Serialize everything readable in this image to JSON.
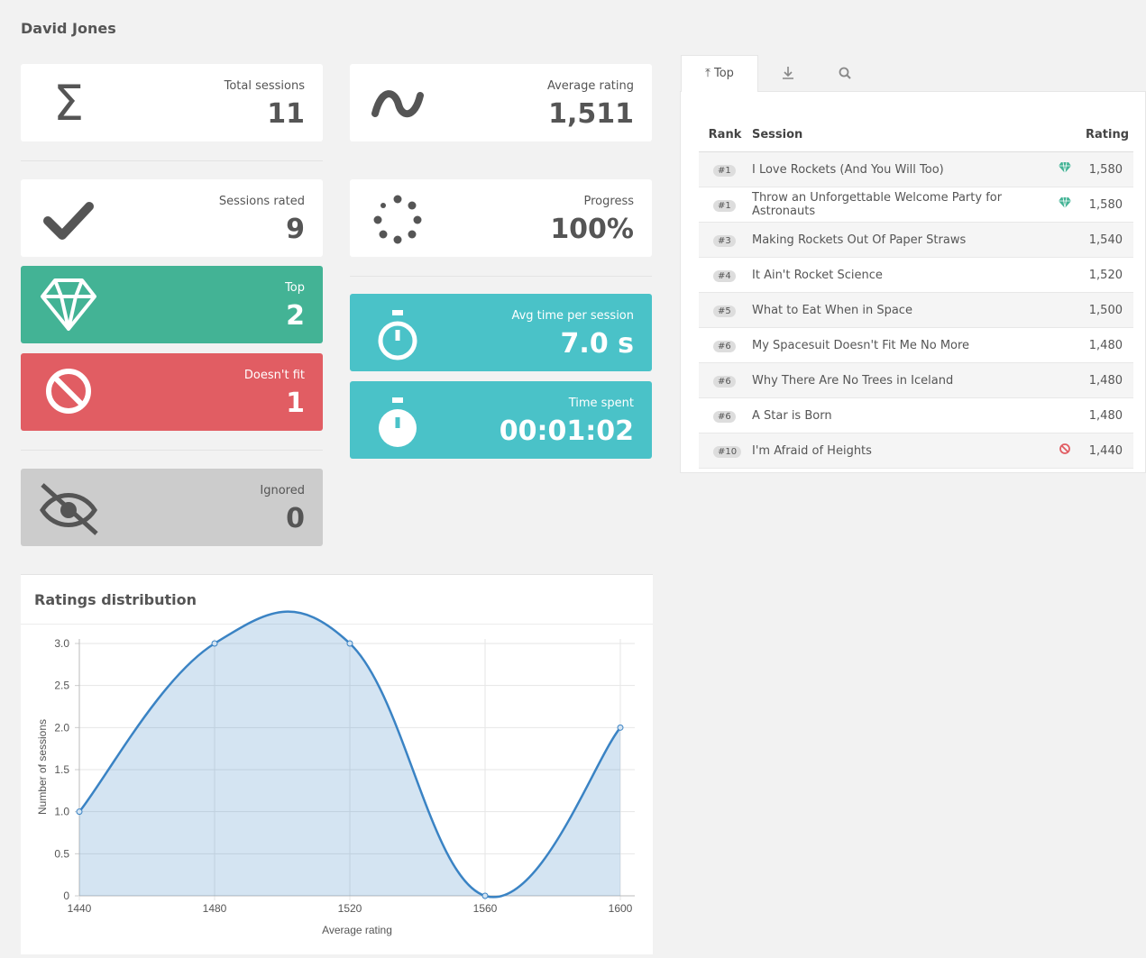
{
  "header": {
    "title": "David Jones"
  },
  "stats": [
    {
      "label": "Total sessions",
      "value": "11"
    },
    {
      "label": "Average rating",
      "value": "1,511"
    },
    {
      "label": "Sessions rated",
      "value": "9"
    },
    {
      "label": "Progress",
      "value": "100%"
    },
    {
      "label": "Top",
      "value": "2"
    },
    {
      "label": "Avg time per session",
      "value": "7.0 s"
    },
    {
      "label": "Doesn't fit",
      "value": "1"
    },
    {
      "label": "Time spent",
      "value": "00:01:02"
    },
    {
      "label": "Ignored",
      "value": "0"
    }
  ],
  "tabs": {
    "active": "Top"
  },
  "table": {
    "columns": [
      "Rank",
      "Session",
      "Rating"
    ],
    "rows": [
      {
        "rank": "#1",
        "session": "I Love Rockets (And You Will Too)",
        "rating": "1,580",
        "badge": "top"
      },
      {
        "rank": "#1",
        "session": "Throw an Unforgettable Welcome Party for Astronauts",
        "rating": "1,580",
        "badge": "top"
      },
      {
        "rank": "#3",
        "session": "Making Rockets Out Of Paper Straws",
        "rating": "1,540"
      },
      {
        "rank": "#4",
        "session": "It Ain't Rocket Science",
        "rating": "1,520"
      },
      {
        "rank": "#5",
        "session": "What to Eat When in Space",
        "rating": "1,500"
      },
      {
        "rank": "#6",
        "session": "My Spacesuit Doesn't Fit Me No More",
        "rating": "1,480"
      },
      {
        "rank": "#6",
        "session": "Why There Are No Trees in Iceland",
        "rating": "1,480"
      },
      {
        "rank": "#6",
        "session": "A Star is Born",
        "rating": "1,480"
      },
      {
        "rank": "#10",
        "session": "I'm Afraid of Heights",
        "rating": "1,440",
        "badge": "doesnt-fit"
      }
    ]
  },
  "chart_data": {
    "type": "line",
    "title": "Ratings distribution",
    "x": [
      1440,
      1480,
      1520,
      1560,
      1600
    ],
    "series": [
      {
        "name": "Number of sessions",
        "color": "#3a83c4",
        "values": [
          1,
          3,
          3,
          0,
          2
        ]
      }
    ],
    "xlabel": "Average rating",
    "ylabel": "Number of sessions",
    "xlim": [
      1440,
      1600
    ],
    "xticks": [
      1440,
      1480,
      1520,
      1560,
      1600
    ],
    "ylim": [
      0,
      3
    ],
    "yticks": [
      0,
      0.5,
      {
        "value": 1,
        "label": "1.0"
      },
      1.5,
      {
        "value": 2,
        "label": "2.0"
      },
      2.5,
      {
        "value": 3,
        "label": "3.0"
      }
    ],
    "grid": true,
    "fill": true
  }
}
